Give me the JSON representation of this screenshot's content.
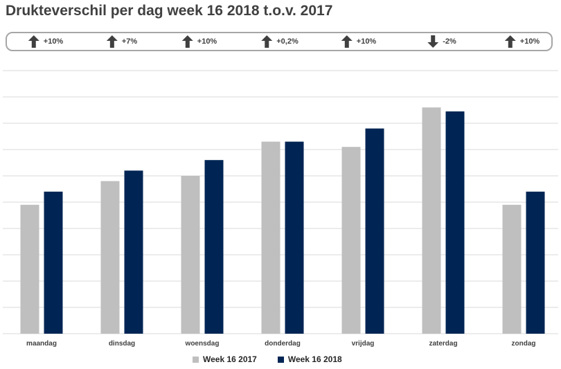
{
  "page": {
    "title": "Drukteverschil per dag week 16 2018 t.o.v. 2017"
  },
  "changes": [
    {
      "day": "maandag",
      "direction": "up",
      "label": "+10%"
    },
    {
      "day": "dinsdag",
      "direction": "up",
      "label": "+7%"
    },
    {
      "day": "woensdag",
      "direction": "up",
      "label": "+10%"
    },
    {
      "day": "donderdag",
      "direction": "up",
      "label": "+0,2%"
    },
    {
      "day": "vrijdag",
      "direction": "up",
      "label": "+10%"
    },
    {
      "day": "zaterdag",
      "direction": "down",
      "label": "-2%"
    },
    {
      "day": "zondag",
      "direction": "up",
      "label": "+10%"
    }
  ],
  "colors": {
    "series_2017": "#bfbfbf",
    "series_2018": "#002554",
    "grid": "#d9d9d9",
    "arrow": "#404040"
  },
  "chart_data": {
    "type": "bar",
    "title": "Drukteverschil per dag week 16 2018 t.o.v. 2017",
    "categories": [
      "maandag",
      "dinsdag",
      "woensdag",
      "donderdag",
      "vrijdag",
      "zaterdag",
      "zondag"
    ],
    "series": [
      {
        "name": "Week 16 2017",
        "values": [
          4.9,
          5.8,
          6.0,
          7.3,
          7.1,
          8.6,
          4.9
        ]
      },
      {
        "name": "Week 16 2018",
        "values": [
          5.4,
          6.2,
          6.6,
          7.3,
          7.8,
          8.45,
          5.4
        ]
      }
    ],
    "xlabel": "",
    "ylabel": "",
    "ylim": [
      0,
      10
    ],
    "yticks_shown": false,
    "grid": true,
    "legend_position": "bottom"
  }
}
